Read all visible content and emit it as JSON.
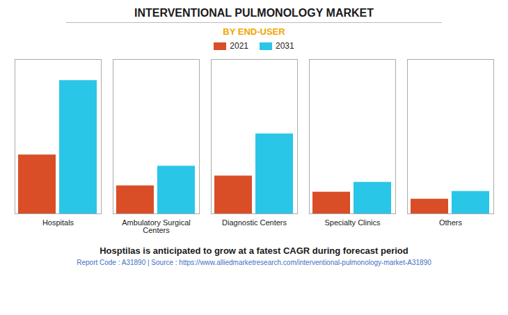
{
  "chart_data": {
    "type": "bar",
    "title": "INTERVENTIONAL PULMONOLOGY MARKET",
    "subtitle": "BY END-USER",
    "categories": [
      "Hospitals",
      "Ambulatory Surgical\nCenters",
      "Diagnostic Centers",
      "Specialty Clinics",
      "Others"
    ],
    "series": [
      {
        "name": "2021",
        "color": "#D94E27",
        "values": [
          4.2,
          2.0,
          2.7,
          1.55,
          1.05
        ]
      },
      {
        "name": "2031",
        "color": "#29C6E8",
        "values": [
          9.5,
          3.4,
          5.7,
          2.25,
          1.6
        ]
      }
    ],
    "ylim": [
      0,
      11
    ],
    "yticks": [],
    "grid": false,
    "legend": "top",
    "tick_labels": "x",
    "annotations": [
      "Hosptilas is anticipated to grow at a fatest CAGR during forecast period",
      "Report Code : A31890  |  Source : https://www.alliedmarketresearch.com/interventional-pulmonology-market-A31890"
    ]
  }
}
